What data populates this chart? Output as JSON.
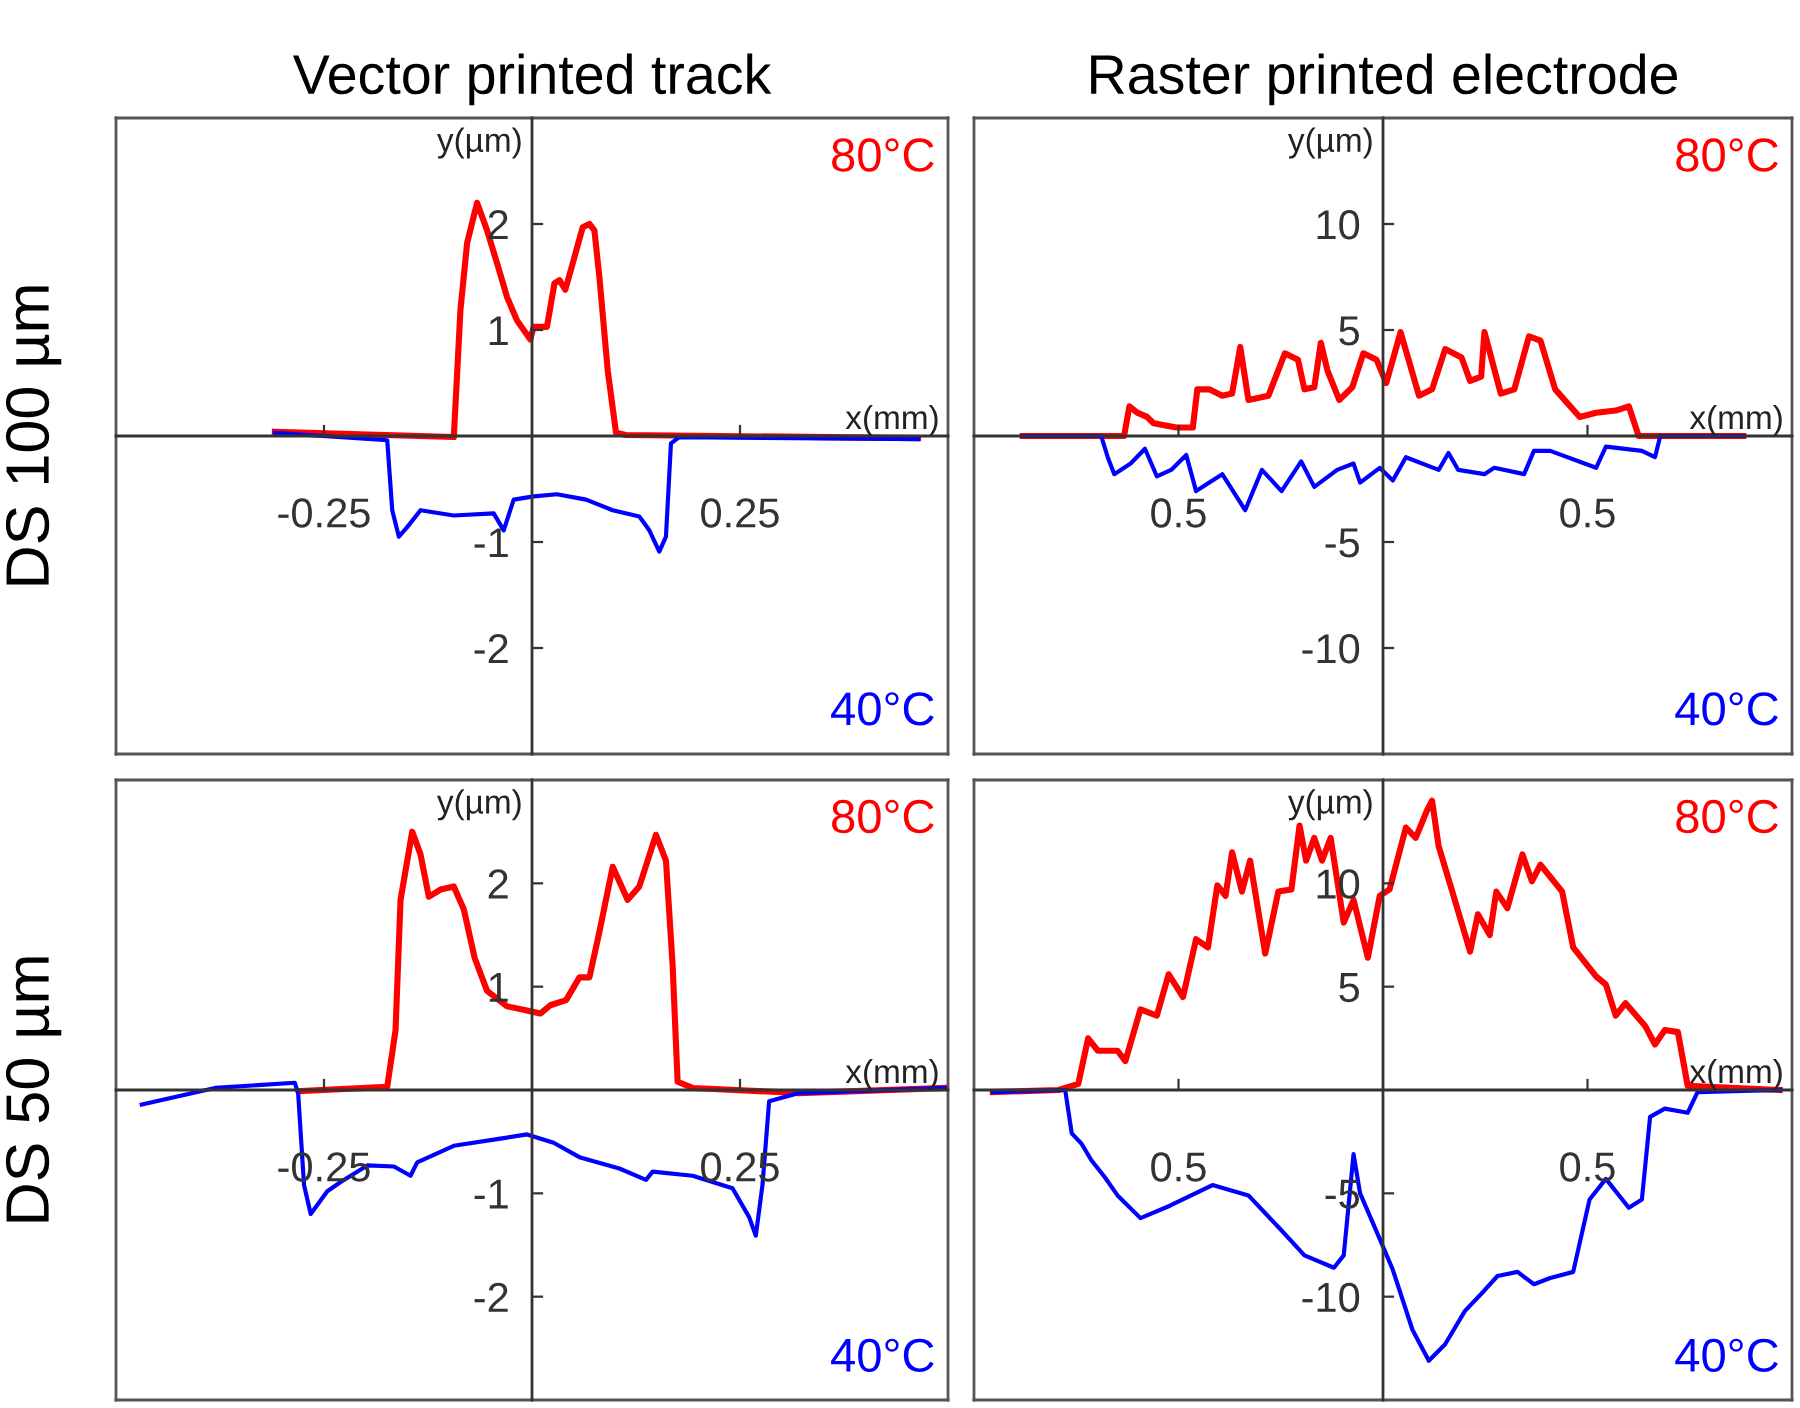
{
  "chart_data": [
    {
      "type": "line",
      "title": "Vector printed track",
      "xlabel": "x(mm)",
      "ylabel": "y(µm)",
      "annotations": [
        "DS 100 µm"
      ],
      "xlim": [
        -0.5,
        0.5
      ],
      "ylim": [
        -3,
        3
      ],
      "xticks": [
        -0.25,
        0.25
      ],
      "yticks": [
        -2,
        -1,
        1,
        2
      ],
      "series": [
        {
          "name": "80°C",
          "color": "#ff0000",
          "x": [
            -0.309,
            -0.094,
            -0.086,
            -0.078,
            -0.066,
            -0.054,
            -0.042,
            -0.03,
            -0.018,
            -0.002,
            0.002,
            0.018,
            0.027,
            0.033,
            0.04,
            0.049,
            0.061,
            0.069,
            0.075,
            0.081,
            0.091,
            0.101,
            0.113,
            0.464
          ],
          "values": [
            0.04,
            -0.01,
            1.19,
            1.82,
            2.2,
            1.94,
            1.63,
            1.31,
            1.09,
            0.91,
            1.03,
            1.03,
            1.44,
            1.47,
            1.38,
            1.63,
            1.97,
            2.0,
            1.94,
            1.5,
            0.62,
            0.03,
            0.01,
            -0.02
          ]
        },
        {
          "name": "40°C",
          "color": "#0000ff",
          "x": [
            -0.309,
            -0.174,
            -0.168,
            -0.16,
            -0.15,
            -0.134,
            -0.094,
            -0.046,
            -0.034,
            -0.022,
            0.002,
            0.03,
            0.065,
            0.097,
            0.129,
            0.141,
            0.153,
            0.161,
            0.167,
            0.177,
            0.464
          ],
          "values": [
            0.03,
            -0.04,
            -0.7,
            -0.95,
            -0.86,
            -0.7,
            -0.75,
            -0.73,
            -0.89,
            -0.6,
            -0.57,
            -0.55,
            -0.6,
            -0.7,
            -0.76,
            -0.89,
            -1.09,
            -0.95,
            -0.07,
            -0.01,
            -0.03
          ]
        }
      ]
    },
    {
      "type": "line",
      "title": "Raster printed electrode",
      "xlabel": "x(mm)",
      "ylabel": "y(µm)",
      "xlim": [
        -1,
        1
      ],
      "ylim": [
        -15,
        15
      ],
      "xticks": [
        {
          "value": -0.5,
          "label": "0.5"
        },
        0.5
      ],
      "yticks": [
        -10,
        -5,
        5,
        10
      ],
      "series": [
        {
          "name": "80°C",
          "color": "#ff0000",
          "x": [
            -0.881,
            -0.729,
            -0.633,
            -0.62,
            -0.601,
            -0.577,
            -0.561,
            -0.505,
            -0.465,
            -0.454,
            -0.425,
            -0.393,
            -0.369,
            -0.349,
            -0.329,
            -0.28,
            -0.24,
            -0.208,
            -0.192,
            -0.168,
            -0.152,
            -0.136,
            -0.107,
            -0.075,
            -0.048,
            -0.016,
            0.008,
            0.043,
            0.088,
            0.12,
            0.152,
            0.192,
            0.213,
            0.24,
            0.248,
            0.288,
            0.321,
            0.357,
            0.385,
            0.421,
            0.481,
            0.521,
            0.569,
            0.601,
            0.625,
            0.881
          ],
          "values": [
            0,
            0,
            0,
            1.4,
            1.1,
            0.9,
            0.6,
            0.4,
            0.4,
            2.2,
            2.2,
            1.9,
            2.0,
            4.2,
            1.7,
            1.9,
            3.9,
            3.6,
            2.2,
            2.3,
            4.4,
            3.1,
            1.7,
            2.3,
            3.9,
            3.6,
            2.5,
            4.9,
            1.9,
            2.2,
            4.1,
            3.7,
            2.6,
            2.8,
            4.9,
            2.0,
            2.2,
            4.7,
            4.5,
            2.2,
            0.9,
            1.1,
            1.2,
            1.4,
            0,
            0
          ]
        },
        {
          "name": "40°C",
          "color": "#0000ff",
          "x": [
            -0.881,
            -0.689,
            -0.673,
            -0.657,
            -0.617,
            -0.582,
            -0.553,
            -0.518,
            -0.481,
            -0.457,
            -0.393,
            -0.337,
            -0.296,
            -0.248,
            -0.2,
            -0.168,
            -0.112,
            -0.072,
            -0.056,
            -0.008,
            0.024,
            0.056,
            0.136,
            0.16,
            0.184,
            0.248,
            0.272,
            0.345,
            0.369,
            0.409,
            0.521,
            0.545,
            0.633,
            0.665,
            0.678,
            0.881
          ],
          "values": [
            0,
            0,
            -1.0,
            -1.8,
            -1.3,
            -0.6,
            -1.9,
            -1.6,
            -0.9,
            -2.6,
            -1.8,
            -3.5,
            -1.6,
            -2.6,
            -1.2,
            -2.4,
            -1.6,
            -1.3,
            -2.2,
            -1.5,
            -2.1,
            -1.0,
            -1.6,
            -0.8,
            -1.6,
            -1.8,
            -1.5,
            -1.8,
            -0.7,
            -0.7,
            -1.5,
            -0.5,
            -0.7,
            -1.0,
            0,
            0
          ]
        }
      ]
    },
    {
      "type": "line",
      "xlabel": "x(mm)",
      "ylabel": "y(µm)",
      "annotations": [
        "DS 50 µm"
      ],
      "xlim": [
        -0.5,
        0.5
      ],
      "ylim": [
        -3,
        3
      ],
      "xticks": [
        -0.25,
        0.25
      ],
      "yticks": [
        -2,
        -1,
        1,
        2
      ],
      "series": [
        {
          "name": "80°C",
          "color": "#ff0000",
          "x": [
            -0.278,
            -0.174,
            -0.164,
            -0.158,
            -0.144,
            -0.134,
            -0.124,
            -0.11,
            -0.094,
            -0.082,
            -0.069,
            -0.054,
            -0.03,
            -0.006,
            0.01,
            0.022,
            0.041,
            0.057,
            0.069,
            0.081,
            0.097,
            0.115,
            0.129,
            0.149,
            0.161,
            0.169,
            0.175,
            0.193,
            0.321,
            0.496
          ],
          "values": [
            -0.01,
            0.03,
            0.58,
            1.84,
            2.5,
            2.28,
            1.87,
            1.94,
            1.97,
            1.75,
            1.28,
            0.96,
            0.81,
            0.77,
            0.74,
            0.82,
            0.87,
            1.09,
            1.09,
            1.53,
            2.16,
            1.84,
            1.97,
            2.47,
            2.22,
            1.21,
            0.08,
            0.02,
            -0.03,
            0.02
          ]
        },
        {
          "name": "40°C",
          "color": "#0000ff",
          "x": [
            -0.469,
            -0.381,
            -0.285,
            -0.281,
            -0.274,
            -0.266,
            -0.246,
            -0.23,
            -0.198,
            -0.166,
            -0.146,
            -0.138,
            -0.094,
            -0.038,
            -0.006,
            0.026,
            0.057,
            0.105,
            0.137,
            0.145,
            0.193,
            0.241,
            0.261,
            0.269,
            0.277,
            0.285,
            0.321,
            0.496
          ],
          "values": [
            -0.14,
            0.02,
            0.07,
            -0.04,
            -0.92,
            -1.2,
            -0.98,
            -0.89,
            -0.73,
            -0.74,
            -0.83,
            -0.7,
            -0.54,
            -0.47,
            -0.43,
            -0.51,
            -0.65,
            -0.76,
            -0.87,
            -0.79,
            -0.83,
            -0.95,
            -1.23,
            -1.41,
            -0.92,
            -0.11,
            -0.03,
            0.02
          ]
        }
      ]
    },
    {
      "type": "line",
      "xlabel": "x(mm)",
      "ylabel": "y(µm)",
      "xlim": [
        -1,
        1
      ],
      "ylim": [
        -15,
        15
      ],
      "xticks": [
        {
          "value": -0.5,
          "label": "0.5"
        },
        0.5
      ],
      "yticks": [
        -10,
        -5,
        5,
        10
      ],
      "series": [
        {
          "name": "80°C",
          "color": "#ff0000",
          "x": [
            -0.954,
            -0.793,
            -0.745,
            -0.721,
            -0.697,
            -0.649,
            -0.63,
            -0.593,
            -0.553,
            -0.524,
            -0.489,
            -0.457,
            -0.428,
            -0.405,
            -0.385,
            -0.369,
            -0.345,
            -0.325,
            -0.288,
            -0.256,
            -0.224,
            -0.204,
            -0.188,
            -0.168,
            -0.149,
            -0.128,
            -0.096,
            -0.072,
            -0.037,
            -0.008,
            0.016,
            0.056,
            0.08,
            0.107,
            0.12,
            0.136,
            0.168,
            0.213,
            0.232,
            0.261,
            0.277,
            0.304,
            0.341,
            0.364,
            0.385,
            0.438,
            0.465,
            0.521,
            0.545,
            0.569,
            0.593,
            0.641,
            0.665,
            0.689,
            0.721,
            0.745,
            0.97
          ],
          "values": [
            -0.1,
            0,
            0.3,
            2.5,
            1.9,
            1.9,
            1.4,
            3.9,
            3.6,
            5.6,
            4.5,
            7.3,
            6.9,
            9.9,
            9.4,
            11.5,
            9.6,
            11.1,
            6.6,
            9.6,
            9.7,
            12.8,
            11.1,
            12.2,
            11.1,
            12.2,
            8.1,
            9.2,
            6.4,
            9.4,
            9.7,
            12.7,
            12.2,
            13.5,
            14.0,
            11.8,
            9.7,
            6.7,
            8.5,
            7.5,
            9.6,
            8.8,
            11.4,
            10.1,
            10.9,
            9.6,
            6.9,
            5.5,
            5.1,
            3.6,
            4.2,
            3.1,
            2.2,
            2.9,
            2.8,
            0.2,
            0
          ]
        },
        {
          "name": "40°C",
          "color": "#0000ff",
          "x": [
            -0.954,
            -0.777,
            -0.761,
            -0.737,
            -0.713,
            -0.681,
            -0.649,
            -0.593,
            -0.521,
            -0.417,
            -0.329,
            -0.248,
            -0.192,
            -0.12,
            -0.096,
            -0.072,
            -0.056,
            -0.008,
            0.024,
            0.072,
            0.112,
            0.152,
            0.2,
            0.248,
            0.28,
            0.329,
            0.369,
            0.409,
            0.465,
            0.505,
            0.545,
            0.601,
            0.633,
            0.653,
            0.689,
            0.745,
            0.769,
            0.97
          ],
          "values": [
            -0.1,
            0,
            -2.1,
            -2.6,
            -3.4,
            -4.2,
            -5.1,
            -6.2,
            -5.6,
            -4.6,
            -5.1,
            -6.8,
            -8.0,
            -8.6,
            -8.0,
            -3.1,
            -5.0,
            -7.2,
            -8.7,
            -11.6,
            -13.1,
            -12.3,
            -10.7,
            -9.7,
            -9.0,
            -8.8,
            -9.4,
            -9.1,
            -8.8,
            -5.3,
            -4.3,
            -5.7,
            -5.3,
            -1.3,
            -0.9,
            -1.1,
            -0.1,
            0
          ]
        }
      ]
    }
  ]
}
